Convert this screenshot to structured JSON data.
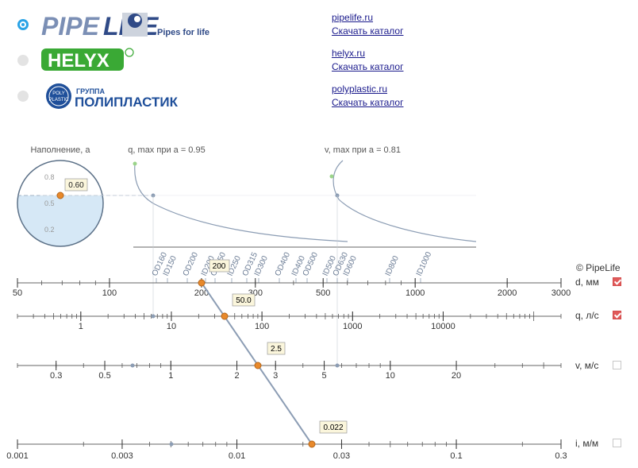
{
  "brands": [
    {
      "name": "PipeLife",
      "tagline": "Pipes for life",
      "selected": true,
      "link_site": "pipelife.ru",
      "link_catalog": "Скачать каталог"
    },
    {
      "name": "HELYX",
      "mark": "®",
      "selected": false,
      "link_site": "helyx.ru",
      "link_catalog": "Скачать каталог"
    },
    {
      "name": "ПОЛИПЛАСТИК",
      "group": "ГРУППА",
      "emblem": "POLY PLASTIC",
      "selected": false,
      "link_site": "polyplastic.ru",
      "link_catalog": "Скачать каталог"
    }
  ],
  "fill": {
    "title": "Наполнение, a",
    "ticks": [
      "0.8",
      "0.5",
      "0.2"
    ],
    "value": "0.60",
    "fraction": 0.6
  },
  "curves": {
    "q_title": "q, max при a = 0.95",
    "v_title": "v, max при a = 0.81"
  },
  "copyright": "© PipeLife",
  "pipe_labels": [
    "OD160",
    "ID150",
    "OD200",
    "ID200",
    "OD250",
    "ID250",
    "OD315",
    "ID300",
    "OD400",
    "ID400",
    "OD500",
    "ID500",
    "OD630",
    "ID600",
    "ID800",
    "ID1000"
  ],
  "scales": [
    {
      "key": "d",
      "label": "d, мм",
      "checked": true,
      "value": "200",
      "ticks": [
        "50",
        "100",
        "200",
        "300",
        "500",
        "1000",
        "2000",
        "3000"
      ]
    },
    {
      "key": "q",
      "label": "q, л/с",
      "checked": true,
      "value": "50.0",
      "ticks": [
        "1",
        "10",
        "100",
        "1000",
        "10000"
      ]
    },
    {
      "key": "v",
      "label": "v, м/с",
      "checked": false,
      "value": "2.5",
      "ticks": [
        "0.3",
        "0.5",
        "1",
        "2",
        "3",
        "5",
        "10",
        "20"
      ]
    },
    {
      "key": "i",
      "label": "i, м/м",
      "checked": false,
      "value": "0.022",
      "ticks": [
        "0.001",
        "0.003",
        "0.01",
        "0.03",
        "0.1",
        "0.3"
      ]
    }
  ],
  "colors": {
    "accent": "#e8892b",
    "line": "#8c9db4",
    "fill": "#d6e8f6",
    "check": "#e05a5a",
    "radio": "#2aa3e6"
  }
}
